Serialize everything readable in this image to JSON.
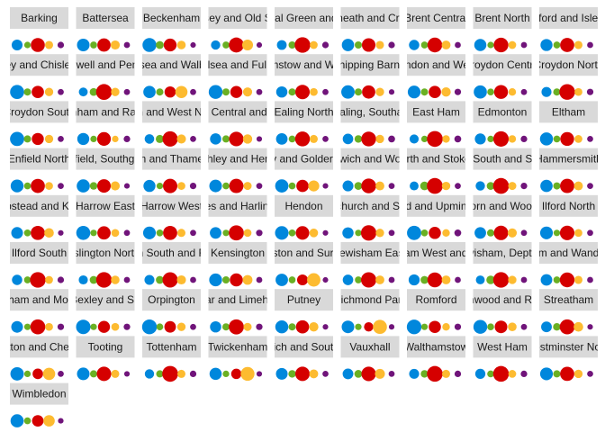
{
  "chart_data": {
    "type": "scatter",
    "title": "",
    "xlabel": "",
    "ylabel": "",
    "grid": false,
    "legend": "none",
    "party_colors": {
      "Labour": "#d50000",
      "Conservative": "#0087dc",
      "Liberal Democrat": "#fdbb30",
      "Green": "#6ab023",
      "Other": "#70147a"
    },
    "party_order": [
      "Conservative",
      "Green",
      "Labour",
      "Liberal Democrat",
      "Other"
    ],
    "facets": [
      {
        "label": "Barking",
        "shares": [
          0.22,
          0.04,
          0.44,
          0.09,
          0.04
        ]
      },
      {
        "label": "Battersea",
        "shares": [
          0.33,
          0.05,
          0.38,
          0.13,
          0.03
        ]
      },
      {
        "label": "Beckenham",
        "shares": [
          0.43,
          0.08,
          0.35,
          0.11,
          0.02
        ]
      },
      {
        "label": "Bermondsey and Old Southwark",
        "shares": [
          0.14,
          0.05,
          0.52,
          0.22,
          0.02
        ]
      },
      {
        "label": "Bethnal Green and Bow",
        "shares": [
          0.16,
          0.06,
          0.58,
          0.08,
          0.04
        ]
      },
      {
        "label": "Blackheath and Crayford",
        "shares": [
          0.31,
          0.06,
          0.4,
          0.09,
          0.04
        ]
      },
      {
        "label": "Brent Central",
        "shares": [
          0.19,
          0.05,
          0.5,
          0.12,
          0.03
        ]
      },
      {
        "label": "Brent North",
        "shares": [
          0.3,
          0.04,
          0.49,
          0.08,
          0.03
        ]
      },
      {
        "label": "Brentford and Isleworth",
        "shares": [
          0.29,
          0.05,
          0.45,
          0.09,
          0.03
        ]
      },
      {
        "label": "Bexley and Chislehurst",
        "shares": [
          0.44,
          0.06,
          0.31,
          0.1,
          0.03
        ]
      },
      {
        "label": "Clerkenwell and Pentonville",
        "shares": [
          0.12,
          0.08,
          0.6,
          0.1,
          0.03
        ]
      },
      {
        "label": "Chelsea and Walbrook",
        "shares": [
          0.31,
          0.06,
          0.24,
          0.3,
          0.03
        ]
      },
      {
        "label": "Chelsea and Fulham",
        "shares": [
          0.42,
          0.06,
          0.29,
          0.13,
          0.03
        ]
      },
      {
        "label": "Walthamstow and Woodford",
        "shares": [
          0.24,
          0.06,
          0.47,
          0.08,
          0.03
        ]
      },
      {
        "label": "Chipping Barnet",
        "shares": [
          0.39,
          0.06,
          0.38,
          0.1,
          0.02
        ]
      },
      {
        "label": "City of London and Westminster",
        "shares": [
          0.34,
          0.06,
          0.31,
          0.14,
          0.04
        ]
      },
      {
        "label": "Croydon Central",
        "shares": [
          0.37,
          0.05,
          0.43,
          0.07,
          0.03
        ]
      },
      {
        "label": "Croydon North",
        "shares": [
          0.17,
          0.06,
          0.58,
          0.08,
          0.04
        ]
      },
      {
        "label": "Croydon South",
        "shares": [
          0.45,
          0.06,
          0.29,
          0.1,
          0.03
        ]
      },
      {
        "label": "Dagenham and Rainham",
        "shares": [
          0.29,
          0.04,
          0.41,
          0.04,
          0.04
        ]
      },
      {
        "label": "Dulwich and West Norwood",
        "shares": [
          0.15,
          0.09,
          0.55,
          0.13,
          0.03
        ]
      },
      {
        "label": "Ealing Central and Acton",
        "shares": [
          0.24,
          0.06,
          0.48,
          0.14,
          0.02
        ]
      },
      {
        "label": "Ealing North",
        "shares": [
          0.26,
          0.05,
          0.51,
          0.09,
          0.03
        ]
      },
      {
        "label": "Ealing, Southall",
        "shares": [
          0.2,
          0.07,
          0.5,
          0.1,
          0.05
        ]
      },
      {
        "label": "East Ham",
        "shares": [
          0.13,
          0.04,
          0.64,
          0.07,
          0.05
        ]
      },
      {
        "label": "Edmonton",
        "shares": [
          0.23,
          0.04,
          0.56,
          0.07,
          0.04
        ]
      },
      {
        "label": "Eltham",
        "shares": [
          0.36,
          0.05,
          0.42,
          0.08,
          0.03
        ]
      },
      {
        "label": "Enfield North",
        "shares": [
          0.35,
          0.05,
          0.45,
          0.08,
          0.03
        ]
      },
      {
        "label": "Enfield, Southgate",
        "shares": [
          0.37,
          0.07,
          0.4,
          0.13,
          0.02
        ]
      },
      {
        "label": "Feltham and Thamesmead",
        "shares": [
          0.29,
          0.04,
          0.47,
          0.08,
          0.04
        ]
      },
      {
        "label": "Finchley and Hendon",
        "shares": [
          0.33,
          0.05,
          0.46,
          0.09,
          0.03
        ]
      },
      {
        "label": "Finchley and Golders Green",
        "shares": [
          0.38,
          0.05,
          0.31,
          0.23,
          0.02
        ]
      },
      {
        "label": "Greenwich and Woolwich",
        "shares": [
          0.22,
          0.08,
          0.5,
          0.12,
          0.03
        ]
      },
      {
        "label": "Hackney North and Stoke Newington",
        "shares": [
          0.12,
          0.11,
          0.6,
          0.1,
          0.03
        ]
      },
      {
        "label": "Hackney South and Shoreditch",
        "shares": [
          0.14,
          0.08,
          0.6,
          0.09,
          0.04
        ]
      },
      {
        "label": "Hammersmith",
        "shares": [
          0.31,
          0.06,
          0.46,
          0.12,
          0.03
        ]
      },
      {
        "label": "Hampstead and Kilburn",
        "shares": [
          0.27,
          0.05,
          0.45,
          0.15,
          0.02
        ]
      },
      {
        "label": "Harrow East",
        "shares": [
          0.44,
          0.04,
          0.38,
          0.08,
          0.03
        ]
      },
      {
        "label": "Harrow West",
        "shares": [
          0.34,
          0.05,
          0.45,
          0.09,
          0.03
        ]
      },
      {
        "label": "Hayes and Harlington",
        "shares": [
          0.26,
          0.04,
          0.53,
          0.08,
          0.04
        ]
      },
      {
        "label": "Hendon",
        "shares": [
          0.4,
          0.05,
          0.4,
          0.11,
          0.02
        ]
      },
      {
        "label": "Hornchurch and St Paul",
        "shares": [
          0.24,
          0.04,
          0.56,
          0.1,
          0.03
        ]
      },
      {
        "label": "Ilford and Upminster",
        "shares": [
          0.46,
          0.05,
          0.3,
          0.07,
          0.05
        ]
      },
      {
        "label": "Holborn and Woodford",
        "shares": [
          0.26,
          0.06,
          0.47,
          0.13,
          0.03
        ]
      },
      {
        "label": "Ilford North",
        "shares": [
          0.34,
          0.04,
          0.48,
          0.08,
          0.03
        ]
      },
      {
        "label": "Ilford South",
        "shares": [
          0.19,
          0.05,
          0.58,
          0.08,
          0.04
        ]
      },
      {
        "label": "Islington North",
        "shares": [
          0.13,
          0.08,
          0.58,
          0.11,
          0.03
        ]
      },
      {
        "label": "Islington South and Finsbury",
        "shares": [
          0.17,
          0.08,
          0.55,
          0.13,
          0.03
        ]
      },
      {
        "label": "Kensington",
        "shares": [
          0.35,
          0.06,
          0.36,
          0.16,
          0.03
        ]
      },
      {
        "label": "Kingston and Surbiton",
        "shares": [
          0.32,
          0.05,
          0.22,
          0.39,
          0.02
        ]
      },
      {
        "label": "Lewisham East",
        "shares": [
          0.2,
          0.05,
          0.55,
          0.12,
          0.03
        ]
      },
      {
        "label": "Lewisham West and Penge",
        "shares": [
          0.23,
          0.08,
          0.51,
          0.12,
          0.03
        ]
      },
      {
        "label": "Lewisham, Deptford",
        "shares": [
          0.12,
          0.11,
          0.58,
          0.1,
          0.03
        ]
      },
      {
        "label": "Mitcham and Wandsworth",
        "shares": [
          0.26,
          0.05,
          0.5,
          0.09,
          0.03
        ]
      },
      {
        "label": "Mitcham and Morden",
        "shares": [
          0.27,
          0.04,
          0.52,
          0.08,
          0.04
        ]
      },
      {
        "label": "Old Bexley and Sidcup",
        "shares": [
          0.47,
          0.04,
          0.29,
          0.08,
          0.04
        ]
      },
      {
        "label": "Orpington",
        "shares": [
          0.5,
          0.05,
          0.26,
          0.1,
          0.03
        ]
      },
      {
        "label": "Poplar and Limehouse",
        "shares": [
          0.24,
          0.06,
          0.53,
          0.09,
          0.04
        ]
      },
      {
        "label": "Putney",
        "shares": [
          0.36,
          0.06,
          0.37,
          0.14,
          0.02
        ]
      },
      {
        "label": "Richmond Park",
        "shares": [
          0.33,
          0.04,
          0.14,
          0.44,
          0.02
        ]
      },
      {
        "label": "Romford",
        "shares": [
          0.49,
          0.04,
          0.3,
          0.07,
          0.04
        ]
      },
      {
        "label": "Northwood and Ruislip",
        "shares": [
          0.42,
          0.05,
          0.33,
          0.11,
          0.03
        ]
      },
      {
        "label": "Streatham",
        "shares": [
          0.21,
          0.07,
          0.52,
          0.15,
          0.02
        ]
      },
      {
        "label": "Sutton and Cheam",
        "shares": [
          0.39,
          0.04,
          0.2,
          0.31,
          0.03
        ]
      },
      {
        "label": "Tooting",
        "shares": [
          0.33,
          0.06,
          0.47,
          0.09,
          0.02
        ]
      },
      {
        "label": "Tottenham",
        "shares": [
          0.14,
          0.06,
          0.62,
          0.09,
          0.04
        ]
      },
      {
        "label": "Twickenham",
        "shares": [
          0.3,
          0.04,
          0.19,
          0.42,
          0.02
        ]
      },
      {
        "label": "Greenwich and South Ealing",
        "shares": [
          0.27,
          0.07,
          0.47,
          0.12,
          0.03
        ]
      },
      {
        "label": "Vauxhall",
        "shares": [
          0.21,
          0.08,
          0.48,
          0.17,
          0.03
        ]
      },
      {
        "label": "Walthamstow",
        "shares": [
          0.17,
          0.07,
          0.59,
          0.09,
          0.04
        ]
      },
      {
        "label": "West Ham",
        "shares": [
          0.18,
          0.05,
          0.59,
          0.08,
          0.04
        ]
      },
      {
        "label": "Westminster North",
        "shares": [
          0.34,
          0.06,
          0.45,
          0.1,
          0.03
        ]
      },
      {
        "label": "Wimbledon",
        "shares": [
          0.37,
          0.05,
          0.26,
          0.25,
          0.02
        ]
      }
    ]
  }
}
